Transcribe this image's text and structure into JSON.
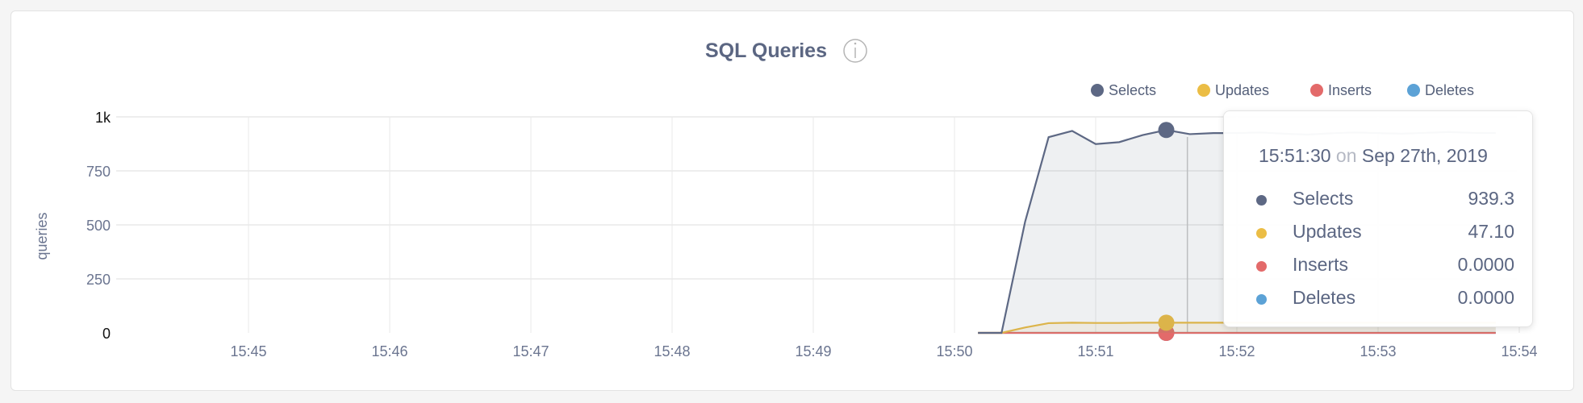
{
  "chart_data": {
    "type": "area",
    "title": "SQL Queries",
    "info_icon": "info-circle-icon",
    "ylabel": "queries",
    "ylim": [
      0,
      1000
    ],
    "yticks": [
      {
        "v": 0,
        "label": "0"
      },
      {
        "v": 250,
        "label": "250"
      },
      {
        "v": 500,
        "label": "500"
      },
      {
        "v": 750,
        "label": "750"
      },
      {
        "v": 1000,
        "label": "1k"
      }
    ],
    "xticks": [
      "15:45",
      "15:46",
      "15:47",
      "15:48",
      "15:49",
      "15:50",
      "15:51",
      "15:52",
      "15:53",
      "15:54"
    ],
    "grid": true,
    "legend_position": "top-right",
    "x": [
      "15:50:10",
      "15:50:20",
      "15:50:30",
      "15:50:40",
      "15:50:50",
      "15:51:00",
      "15:51:10",
      "15:51:20",
      "15:51:30",
      "15:51:40",
      "15:51:50",
      "15:52:00",
      "15:52:10",
      "15:52:20",
      "15:52:30",
      "15:52:40",
      "15:52:50",
      "15:53:00",
      "15:53:10",
      "15:53:20",
      "15:53:30",
      "15:53:40",
      "15:53:50"
    ],
    "series": [
      {
        "name": "Selects",
        "color": "#5d6884",
        "values": [
          0,
          0,
          514,
          906,
          935,
          874,
          883,
          916,
          939.3,
          920,
          925,
          925,
          928,
          922,
          918,
          924,
          928,
          925,
          922,
          926,
          930,
          926,
          925
        ]
      },
      {
        "name": "Updates",
        "color": "#ebbd45",
        "values": [
          0,
          0,
          25,
          45,
          47,
          46,
          46,
          47,
          47.1,
          47,
          47,
          47,
          47,
          47,
          47,
          47,
          47,
          47,
          47,
          47,
          47,
          47,
          47
        ]
      },
      {
        "name": "Inserts",
        "color": "#e36a6a",
        "values": [
          0,
          0,
          0,
          0,
          0,
          0,
          0,
          0,
          0,
          0,
          0,
          0,
          0,
          0,
          0,
          0,
          0,
          0,
          0,
          0,
          0,
          0,
          0
        ]
      },
      {
        "name": "Deletes",
        "color": "#5ca2d6",
        "values": [
          0,
          0,
          0,
          0,
          0,
          0,
          0,
          0,
          0,
          0,
          0,
          0,
          0,
          0,
          0,
          0,
          0,
          0,
          0,
          0,
          0,
          0,
          0
        ]
      }
    ],
    "highlight_x": "15:51:30",
    "tooltip": {
      "time": "15:51:30",
      "on": "on",
      "date": "Sep 27th, 2019",
      "rows": [
        {
          "label": "Selects",
          "value": "939.3",
          "color": "#5d6884"
        },
        {
          "label": "Updates",
          "value": "47.10",
          "color": "#ebbd45"
        },
        {
          "label": "Inserts",
          "value": "0.0000",
          "color": "#e36a6a"
        },
        {
          "label": "Deletes",
          "value": "0.0000",
          "color": "#5ca2d6"
        }
      ]
    }
  }
}
